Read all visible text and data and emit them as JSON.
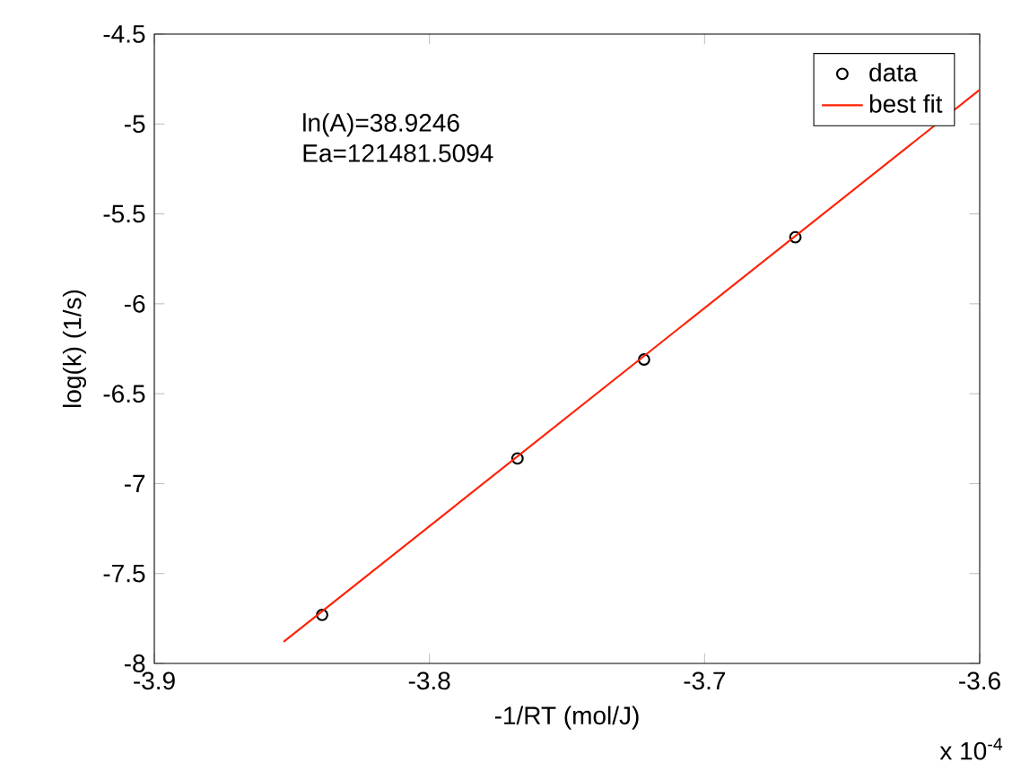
{
  "chart_data": {
    "type": "scatter",
    "xlabel": "-1/RT (mol/J)",
    "ylabel": "log(k) (1/s)",
    "xlim": [
      -3.9,
      -3.6
    ],
    "xticks": [
      -3.9,
      -3.8,
      -3.7,
      -3.6
    ],
    "ylim": [
      -8,
      -4.5
    ],
    "yticks": [
      -8,
      -7.5,
      -7,
      -6.5,
      -6,
      -5.5,
      -5,
      -4.5
    ],
    "legend": "top right",
    "annotations": [
      "ln(A)=38.9246",
      "Ea=121481.5094",
      "x 10$^{-4}$"
    ],
    "series": [
      {
        "name": "data",
        "marker": "circle",
        "color": "#000000",
        "x": [
          -3.839,
          -3.768,
          -3.722,
          -3.667
        ],
        "values": [
          -7.73,
          -6.86,
          -6.31,
          -5.63
        ]
      },
      {
        "name": "best fit",
        "type": "line",
        "line_style": "solid",
        "color": "#ff2000",
        "x": [
          -3.853,
          -3.6
        ],
        "values": [
          -7.88,
          -4.81
        ]
      }
    ]
  }
}
